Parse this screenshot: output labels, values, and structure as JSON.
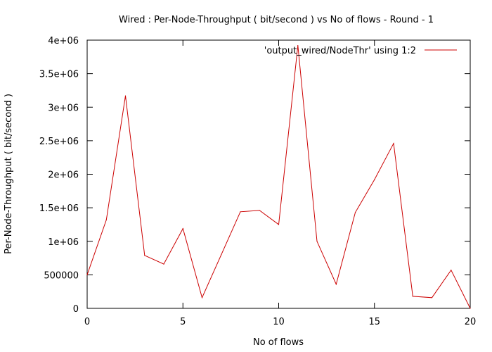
{
  "chart_data": {
    "type": "line",
    "title": "Wired : Per-Node-Throughput ( bit/second ) vs No of flows - Round - 1",
    "xlabel": "No of flows",
    "ylabel": "Per-Node-Throughput ( bit/second )",
    "xlim": [
      0,
      20
    ],
    "ylim": [
      0,
      4000000
    ],
    "xticks": [
      0,
      5,
      10,
      15,
      20
    ],
    "xtick_labels": [
      "0",
      "5",
      "10",
      "15",
      "20"
    ],
    "yticks": [
      0,
      500000,
      1000000,
      1500000,
      2000000,
      2500000,
      3000000,
      3500000,
      4000000
    ],
    "ytick_labels": [
      "0",
      "500000",
      "1e+06",
      "1.5e+06",
      "2e+06",
      "2.5e+06",
      "3e+06",
      "3.5e+06",
      "4e+06"
    ],
    "grid": false,
    "legend_position": "top-right",
    "series": [
      {
        "name": "'output_wired/NodeThr' using 1:2",
        "color": "#cc0000",
        "x": [
          0,
          1,
          2,
          3,
          4,
          5,
          6,
          7,
          8,
          9,
          10,
          11,
          12,
          13,
          14,
          15,
          16,
          17,
          18,
          19,
          20
        ],
        "y": [
          500000,
          1320000,
          3170000,
          790000,
          660000,
          1190000,
          160000,
          800000,
          1440000,
          1460000,
          1250000,
          3920000,
          1000000,
          360000,
          1430000,
          1920000,
          2460000,
          180000,
          160000,
          570000,
          0
        ]
      }
    ]
  }
}
